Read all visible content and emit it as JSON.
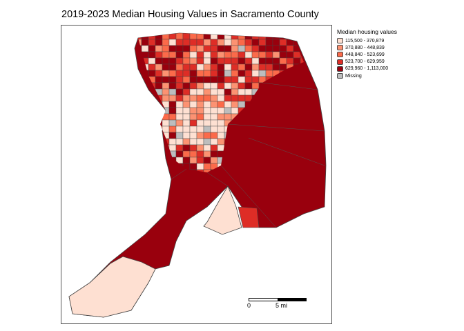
{
  "title": "2019-2023 Median Housing Values in Sacramento County",
  "legend": {
    "title": "Median housing values",
    "items": [
      {
        "label": "115,500 - 370,879",
        "color": "#FEE0D2"
      },
      {
        "label": "370,880 - 448,839",
        "color": "#FC9272"
      },
      {
        "label": "448,840 - 523,699",
        "color": "#FB6A4A"
      },
      {
        "label": "523,700 - 629,959",
        "color": "#DE2D26"
      },
      {
        "label": "629,960 - 1,113,000",
        "color": "#99000D"
      },
      {
        "label": "Missing",
        "color": "#BDBDBD"
      }
    ]
  },
  "scale_bar": {
    "start": "0",
    "mid": "5 mi"
  }
}
